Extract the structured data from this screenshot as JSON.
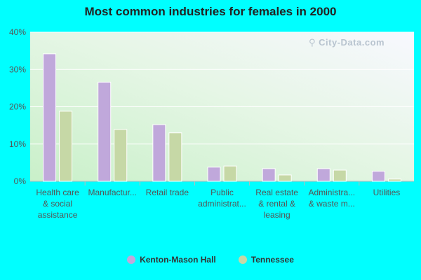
{
  "chart_data": {
    "type": "bar",
    "title": "Most common industries for females in 2000",
    "categories": [
      [
        "Health care",
        "& social",
        "assistance"
      ],
      [
        "Manufactur..."
      ],
      [
        "Retail trade"
      ],
      [
        "Public",
        "administrat..."
      ],
      [
        "Real estate",
        "& rental &",
        "leasing"
      ],
      [
        "Administra...",
        "& waste m..."
      ],
      [
        "Utilities"
      ]
    ],
    "series": [
      {
        "name": "Kenton-Mason Hall",
        "color": "#c0a8db",
        "values": [
          34.2,
          26.6,
          15.2,
          3.8,
          3.4,
          3.4,
          2.7
        ]
      },
      {
        "name": "Tennessee",
        "color": "#c6d8a6",
        "values": [
          18.8,
          13.9,
          13.0,
          4.1,
          1.7,
          3.0,
          0.6
        ]
      }
    ],
    "yticks": [
      "0%",
      "10%",
      "20%",
      "30%",
      "40%"
    ],
    "ylim": [
      0,
      40
    ],
    "grid": true,
    "legend_position": "bottom"
  },
  "watermark": "City-Data.com"
}
